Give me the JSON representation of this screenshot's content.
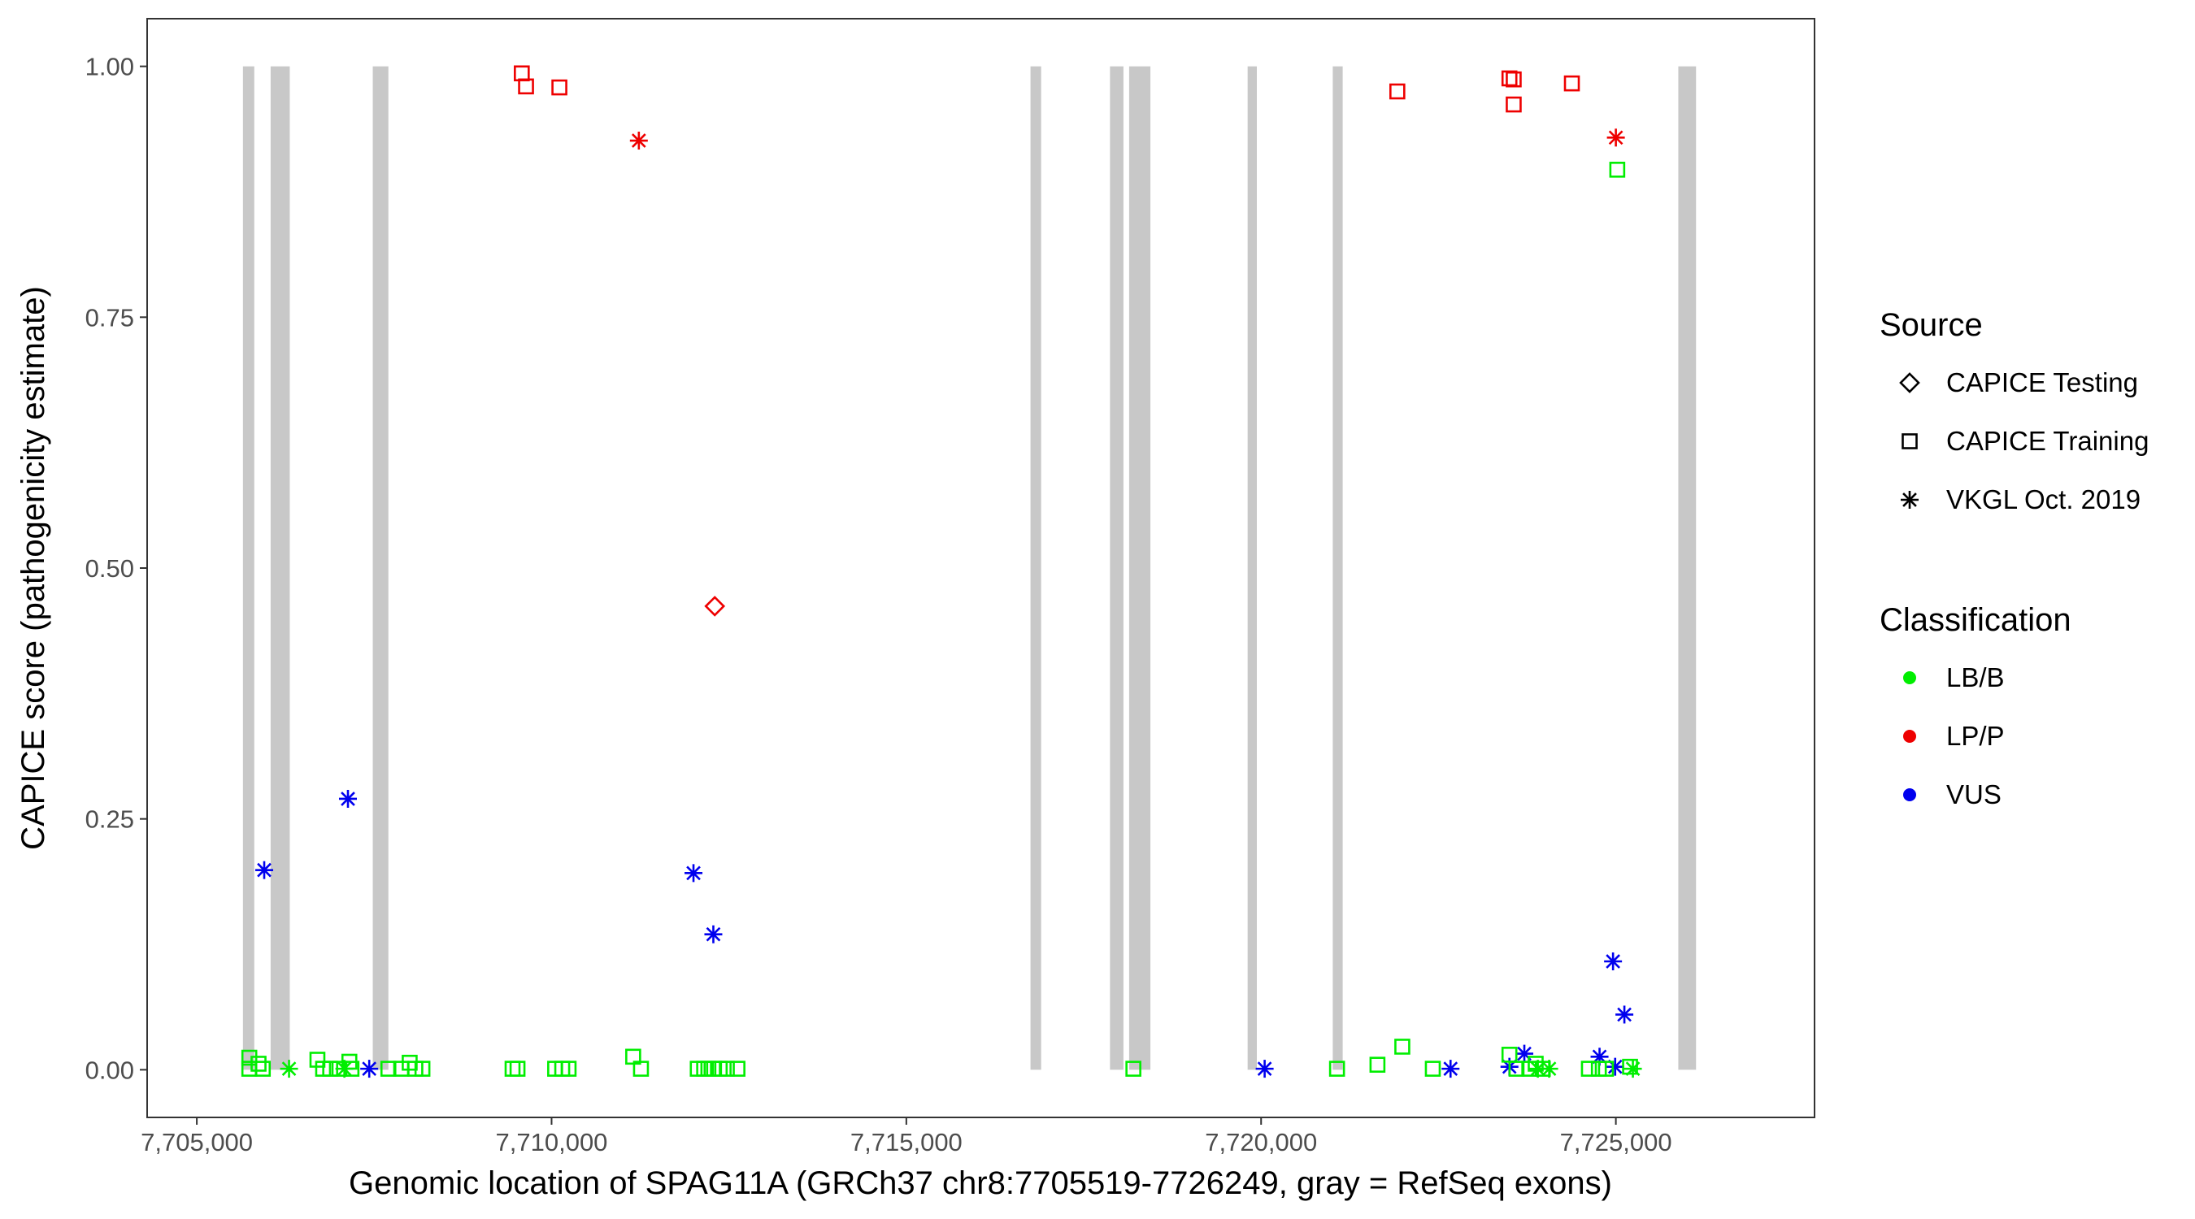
{
  "chart_data": {
    "type": "scatter",
    "xlabel": "Genomic location of SPAG11A (GRCh37 chr8:7705519-7726249, gray = RefSeq exons)",
    "ylabel": "CAPICE score (pathogenicity estimate)",
    "xlim": [
      7704300,
      7727800
    ],
    "ylim": [
      -0.0475,
      1.0475
    ],
    "x_ticks": [
      7705000,
      7710000,
      7715000,
      7720000,
      7725000
    ],
    "x_tick_labels": [
      "7,705,000",
      "7,710,000",
      "7,715,000",
      "7,720,000",
      "7,725,000"
    ],
    "y_ticks": [
      0,
      0.25,
      0.5,
      0.75,
      1.0
    ],
    "y_tick_labels": [
      "0.00",
      "0.25",
      "0.50",
      "0.75",
      "1.00"
    ],
    "grid": false,
    "colors": {
      "LB/B": "#00ee00",
      "LP/P": "#ee0000",
      "VUS": "#0000ee",
      "exon": "#c8c8c8"
    },
    "exons": [
      [
        7705650,
        7705810
      ],
      [
        7706040,
        7706310
      ],
      [
        7707480,
        7707700
      ],
      [
        7716750,
        7716900
      ],
      [
        7717870,
        7718060
      ],
      [
        7718140,
        7718440
      ],
      [
        7719810,
        7719940
      ],
      [
        7721010,
        7721150
      ],
      [
        7725880,
        7726130
      ]
    ],
    "legend": {
      "position": "right",
      "source_title": "Source",
      "source_items": [
        {
          "label": "CAPICE Testing",
          "shape": "diamond"
        },
        {
          "label": "CAPICE Training",
          "shape": "square"
        },
        {
          "label": "VKGL Oct. 2019",
          "shape": "asterisk"
        }
      ],
      "class_title": "Classification",
      "class_items": [
        {
          "label": "LB/B",
          "color": "#00ee00"
        },
        {
          "label": "LP/P",
          "color": "#ee0000"
        },
        {
          "label": "VUS",
          "color": "#0000ee"
        }
      ]
    },
    "points": [
      {
        "x": 7709580,
        "y": 0.993,
        "shape": "square",
        "cls": "LP/P"
      },
      {
        "x": 7709640,
        "y": 0.98,
        "shape": "square",
        "cls": "LP/P"
      },
      {
        "x": 7710110,
        "y": 0.979,
        "shape": "square",
        "cls": "LP/P"
      },
      {
        "x": 7711230,
        "y": 0.926,
        "shape": "asterisk",
        "cls": "LP/P"
      },
      {
        "x": 7712300,
        "y": 0.462,
        "shape": "diamond",
        "cls": "LP/P"
      },
      {
        "x": 7721920,
        "y": 0.975,
        "shape": "square",
        "cls": "LP/P"
      },
      {
        "x": 7723500,
        "y": 0.988,
        "shape": "square",
        "cls": "LP/P"
      },
      {
        "x": 7723560,
        "y": 0.987,
        "shape": "square",
        "cls": "LP/P"
      },
      {
        "x": 7723560,
        "y": 0.962,
        "shape": "square",
        "cls": "LP/P"
      },
      {
        "x": 7724380,
        "y": 0.983,
        "shape": "square",
        "cls": "LP/P"
      },
      {
        "x": 7725000,
        "y": 0.929,
        "shape": "asterisk",
        "cls": "LP/P"
      },
      {
        "x": 7725020,
        "y": 0.897,
        "shape": "square",
        "cls": "LB/B"
      },
      {
        "x": 7705950,
        "y": 0.199,
        "shape": "asterisk",
        "cls": "VUS"
      },
      {
        "x": 7707130,
        "y": 0.27,
        "shape": "asterisk",
        "cls": "VUS"
      },
      {
        "x": 7707430,
        "y": 0.001,
        "shape": "asterisk",
        "cls": "VUS"
      },
      {
        "x": 7712000,
        "y": 0.196,
        "shape": "asterisk",
        "cls": "VUS"
      },
      {
        "x": 7712280,
        "y": 0.135,
        "shape": "asterisk",
        "cls": "VUS"
      },
      {
        "x": 7720050,
        "y": 0.001,
        "shape": "asterisk",
        "cls": "VUS"
      },
      {
        "x": 7722670,
        "y": 0.001,
        "shape": "asterisk",
        "cls": "VUS"
      },
      {
        "x": 7723500,
        "y": 0.003,
        "shape": "asterisk",
        "cls": "VUS"
      },
      {
        "x": 7723710,
        "y": 0.016,
        "shape": "asterisk",
        "cls": "VUS"
      },
      {
        "x": 7724770,
        "y": 0.013,
        "shape": "asterisk",
        "cls": "VUS"
      },
      {
        "x": 7724960,
        "y": 0.108,
        "shape": "asterisk",
        "cls": "VUS"
      },
      {
        "x": 7725120,
        "y": 0.055,
        "shape": "asterisk",
        "cls": "VUS"
      },
      {
        "x": 7724990,
        "y": 0.003,
        "shape": "asterisk",
        "cls": "VUS"
      },
      {
        "x": 7705740,
        "y": 0.012,
        "shape": "square",
        "cls": "LB/B"
      },
      {
        "x": 7705740,
        "y": 0.001,
        "shape": "square",
        "cls": "LB/B"
      },
      {
        "x": 7705870,
        "y": 0.006,
        "shape": "square",
        "cls": "LB/B"
      },
      {
        "x": 7705930,
        "y": 0.001,
        "shape": "square",
        "cls": "LB/B"
      },
      {
        "x": 7706300,
        "y": 0.001,
        "shape": "asterisk",
        "cls": "LB/B"
      },
      {
        "x": 7706700,
        "y": 0.01,
        "shape": "square",
        "cls": "LB/B"
      },
      {
        "x": 7706780,
        "y": 0.001,
        "shape": "square",
        "cls": "LB/B"
      },
      {
        "x": 7706880,
        "y": 0.001,
        "shape": "square",
        "cls": "LB/B"
      },
      {
        "x": 7707010,
        "y": 0.001,
        "shape": "square",
        "cls": "LB/B"
      },
      {
        "x": 7707080,
        "y": 0.001,
        "shape": "asterisk",
        "cls": "LB/B"
      },
      {
        "x": 7707150,
        "y": 0.008,
        "shape": "square",
        "cls": "LB/B"
      },
      {
        "x": 7707180,
        "y": 0.001,
        "shape": "square",
        "cls": "LB/B"
      },
      {
        "x": 7707700,
        "y": 0.001,
        "shape": "square",
        "cls": "LB/B"
      },
      {
        "x": 7707880,
        "y": 0.001,
        "shape": "square",
        "cls": "LB/B"
      },
      {
        "x": 7708000,
        "y": 0.007,
        "shape": "square",
        "cls": "LB/B"
      },
      {
        "x": 7708080,
        "y": 0.001,
        "shape": "square",
        "cls": "LB/B"
      },
      {
        "x": 7708180,
        "y": 0.001,
        "shape": "square",
        "cls": "LB/B"
      },
      {
        "x": 7709450,
        "y": 0.001,
        "shape": "square",
        "cls": "LB/B"
      },
      {
        "x": 7709520,
        "y": 0.001,
        "shape": "square",
        "cls": "LB/B"
      },
      {
        "x": 7710050,
        "y": 0.001,
        "shape": "square",
        "cls": "LB/B"
      },
      {
        "x": 7710150,
        "y": 0.001,
        "shape": "square",
        "cls": "LB/B"
      },
      {
        "x": 7710240,
        "y": 0.001,
        "shape": "square",
        "cls": "LB/B"
      },
      {
        "x": 7711150,
        "y": 0.013,
        "shape": "square",
        "cls": "LB/B"
      },
      {
        "x": 7711260,
        "y": 0.001,
        "shape": "square",
        "cls": "LB/B"
      },
      {
        "x": 7712060,
        "y": 0.001,
        "shape": "square",
        "cls": "LB/B"
      },
      {
        "x": 7712150,
        "y": 0.001,
        "shape": "square",
        "cls": "LB/B"
      },
      {
        "x": 7712210,
        "y": 0.001,
        "shape": "square",
        "cls": "LB/B"
      },
      {
        "x": 7712290,
        "y": 0.001,
        "shape": "square",
        "cls": "LB/B"
      },
      {
        "x": 7712370,
        "y": 0.001,
        "shape": "square",
        "cls": "LB/B"
      },
      {
        "x": 7712470,
        "y": 0.001,
        "shape": "square",
        "cls": "LB/B"
      },
      {
        "x": 7712620,
        "y": 0.001,
        "shape": "square",
        "cls": "LB/B"
      },
      {
        "x": 7718200,
        "y": 0.001,
        "shape": "square",
        "cls": "LB/B"
      },
      {
        "x": 7721070,
        "y": 0.001,
        "shape": "square",
        "cls": "LB/B"
      },
      {
        "x": 7721640,
        "y": 0.005,
        "shape": "square",
        "cls": "LB/B"
      },
      {
        "x": 7721990,
        "y": 0.023,
        "shape": "square",
        "cls": "LB/B"
      },
      {
        "x": 7722420,
        "y": 0.001,
        "shape": "square",
        "cls": "LB/B"
      },
      {
        "x": 7723500,
        "y": 0.015,
        "shape": "square",
        "cls": "LB/B"
      },
      {
        "x": 7723600,
        "y": 0.001,
        "shape": "square",
        "cls": "LB/B"
      },
      {
        "x": 7723780,
        "y": 0.001,
        "shape": "square",
        "cls": "LB/B"
      },
      {
        "x": 7723870,
        "y": 0.006,
        "shape": "square",
        "cls": "LB/B"
      },
      {
        "x": 7723900,
        "y": 0.001,
        "shape": "asterisk",
        "cls": "LB/B"
      },
      {
        "x": 7723970,
        "y": 0.001,
        "shape": "square",
        "cls": "LB/B"
      },
      {
        "x": 7724060,
        "y": 0.001,
        "shape": "asterisk",
        "cls": "LB/B"
      },
      {
        "x": 7724620,
        "y": 0.001,
        "shape": "square",
        "cls": "LB/B"
      },
      {
        "x": 7724760,
        "y": 0.001,
        "shape": "square",
        "cls": "LB/B"
      },
      {
        "x": 7724860,
        "y": 0.001,
        "shape": "square",
        "cls": "LB/B"
      },
      {
        "x": 7725200,
        "y": 0.003,
        "shape": "square",
        "cls": "LB/B"
      },
      {
        "x": 7725240,
        "y": 0.001,
        "shape": "asterisk",
        "cls": "LB/B"
      }
    ]
  }
}
